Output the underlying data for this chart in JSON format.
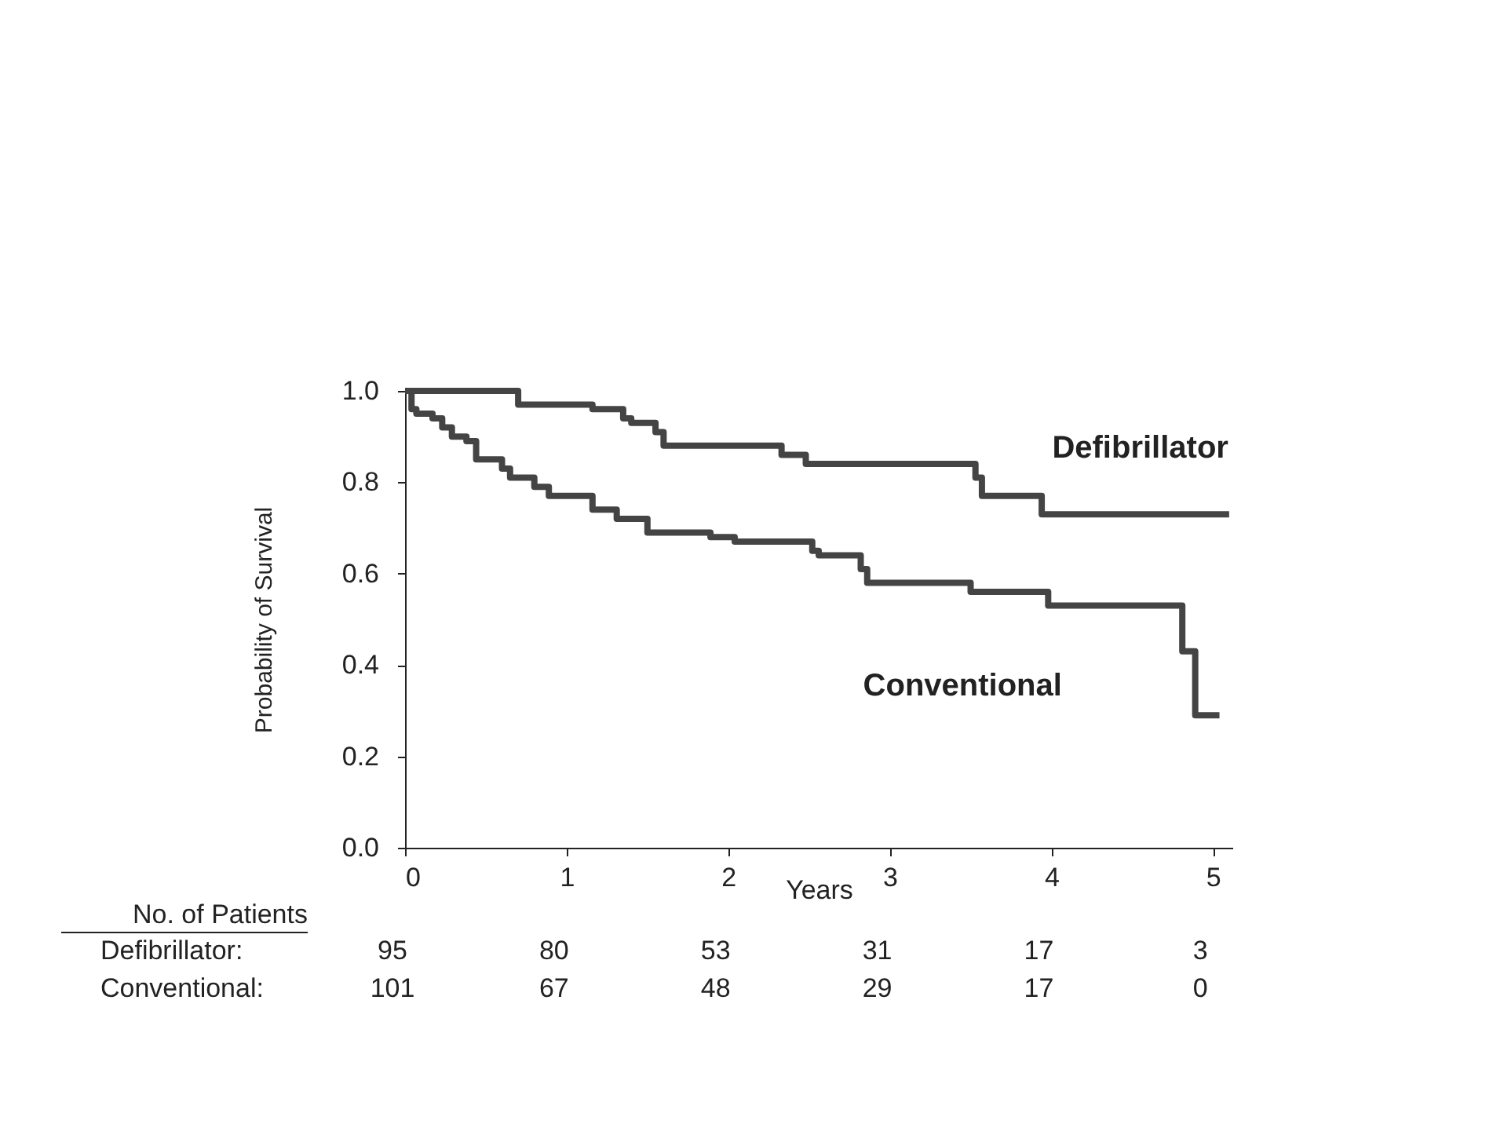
{
  "chart_data": {
    "type": "step",
    "xlabel": "Years",
    "ylabel": "Probability of Survival",
    "xlim": [
      0,
      5.12
    ],
    "xticks": [
      0,
      1,
      2,
      3,
      4,
      5
    ],
    "ylim": [
      0,
      1
    ],
    "yticks": [
      {
        "value": 0,
        "label": "0.0"
      },
      {
        "value": 0.2,
        "label": "0.2"
      },
      {
        "value": 0.4,
        "label": "0.4"
      },
      {
        "value": 0.6,
        "label": "0.6"
      },
      {
        "value": 0.8,
        "label": "0.8"
      },
      {
        "value": 1,
        "label": "1.0"
      }
    ],
    "grid": false,
    "legend": false,
    "line_style": "solid",
    "marker": "none",
    "series": [
      {
        "name": "Defibrillator",
        "color": "#444444",
        "x": [
          0,
          0.55,
          0.7,
          1.16,
          1.35,
          1.4,
          1.55,
          1.6,
          2.33,
          2.48,
          3.53,
          3.57,
          3.94,
          5.1
        ],
        "values": [
          1.0,
          1.0,
          0.97,
          0.96,
          0.94,
          0.93,
          0.91,
          0.88,
          0.86,
          0.84,
          0.81,
          0.77,
          0.73,
          0.73
        ]
      },
      {
        "name": "Conventional",
        "color": "#444444",
        "x": [
          0,
          0.04,
          0.07,
          0.17,
          0.23,
          0.29,
          0.38,
          0.44,
          0.6,
          0.65,
          0.8,
          0.89,
          1.16,
          1.31,
          1.5,
          1.89,
          2.04,
          2.52,
          2.56,
          2.82,
          2.86,
          3.5,
          3.98,
          4.81,
          4.89,
          5.04
        ],
        "values": [
          1.0,
          0.96,
          0.95,
          0.94,
          0.92,
          0.9,
          0.89,
          0.85,
          0.83,
          0.81,
          0.79,
          0.77,
          0.74,
          0.72,
          0.69,
          0.68,
          0.67,
          0.65,
          0.64,
          0.61,
          0.58,
          0.56,
          0.53,
          0.43,
          0.29,
          0.29
        ]
      }
    ],
    "annotations": [
      "No. of Patients",
      "Defibrillator:",
      "Conventional:",
      "95",
      "80",
      "53",
      "31",
      "17",
      "3",
      "101",
      "67",
      "48",
      "29",
      "17",
      "0"
    ]
  }
}
